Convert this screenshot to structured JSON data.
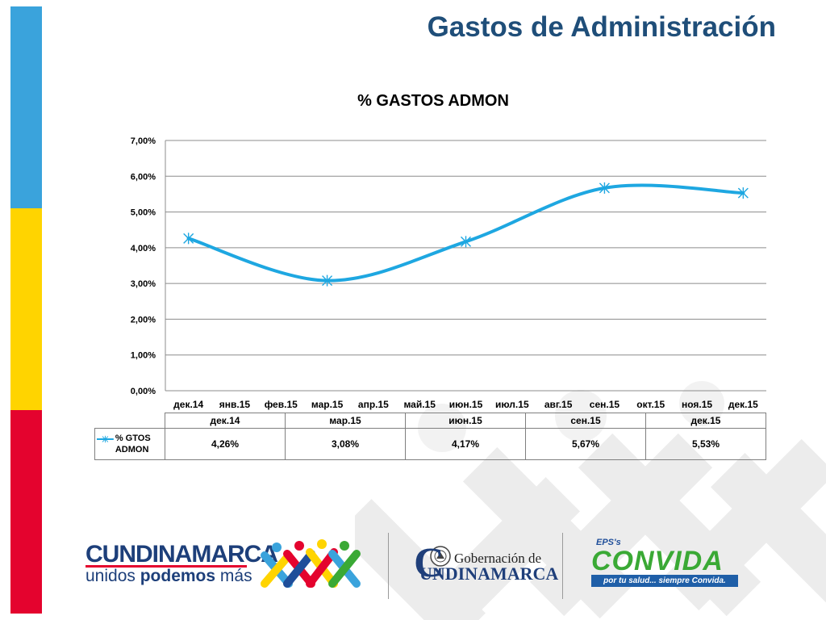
{
  "page": {
    "title": "Gastos de Administración"
  },
  "colors": {
    "flag_blue": "#3aa3dc",
    "flag_yellow": "#ffd400",
    "flag_red": "#e4032e",
    "title": "#1f4e79",
    "series": "#1ea7e1"
  },
  "chart_data": {
    "type": "line",
    "title": "% GASTOS ADMON",
    "x": [
      "дек.14",
      "янв.15",
      "фев.15",
      "мар.15",
      "апр.15",
      "май.15",
      "июн.15",
      "июл.15",
      "авг.15",
      "сен.15",
      "окт.15",
      "ноя.15",
      "дек.15"
    ],
    "series": [
      {
        "name": "% GTOS ADMON",
        "points": [
          {
            "x": "дек.14",
            "y": 4.26
          },
          {
            "x": "мар.15",
            "y": 3.08
          },
          {
            "x": "июн.15",
            "y": 4.17
          },
          {
            "x": "сен.15",
            "y": 5.67
          },
          {
            "x": "дек.15",
            "y": 5.53
          }
        ]
      }
    ],
    "y_ticks": [
      "0,00%",
      "1,00%",
      "2,00%",
      "3,00%",
      "4,00%",
      "5,00%",
      "6,00%",
      "7,00%"
    ],
    "ylim": [
      0,
      7
    ],
    "smoothed": true,
    "marker": "asterisk",
    "grid": "horizontal",
    "data_table": {
      "headers": [
        "дек.14",
        "мар.15",
        "июн.15",
        "сен.15",
        "дек.15"
      ],
      "legend_label": "% GTOS ADMON",
      "values": [
        "4,26%",
        "3,08%",
        "4,17%",
        "5,67%",
        "5,53%"
      ]
    }
  },
  "logos": {
    "cundinamarca_name": "CUNDINAMARCA",
    "cundinamarca_slogan_a": "unidos ",
    "cundinamarca_slogan_b": "podemos",
    "cundinamarca_slogan_c": " más",
    "gobernacion_line1": "Gobernación de",
    "gobernacion_line2": "UNDINAMARCA",
    "gobernacion_initial": "C",
    "eps_label": "EPS's",
    "convida_name": "CONVIDA",
    "convida_slogan": "por tu salud... siempre Convida."
  }
}
